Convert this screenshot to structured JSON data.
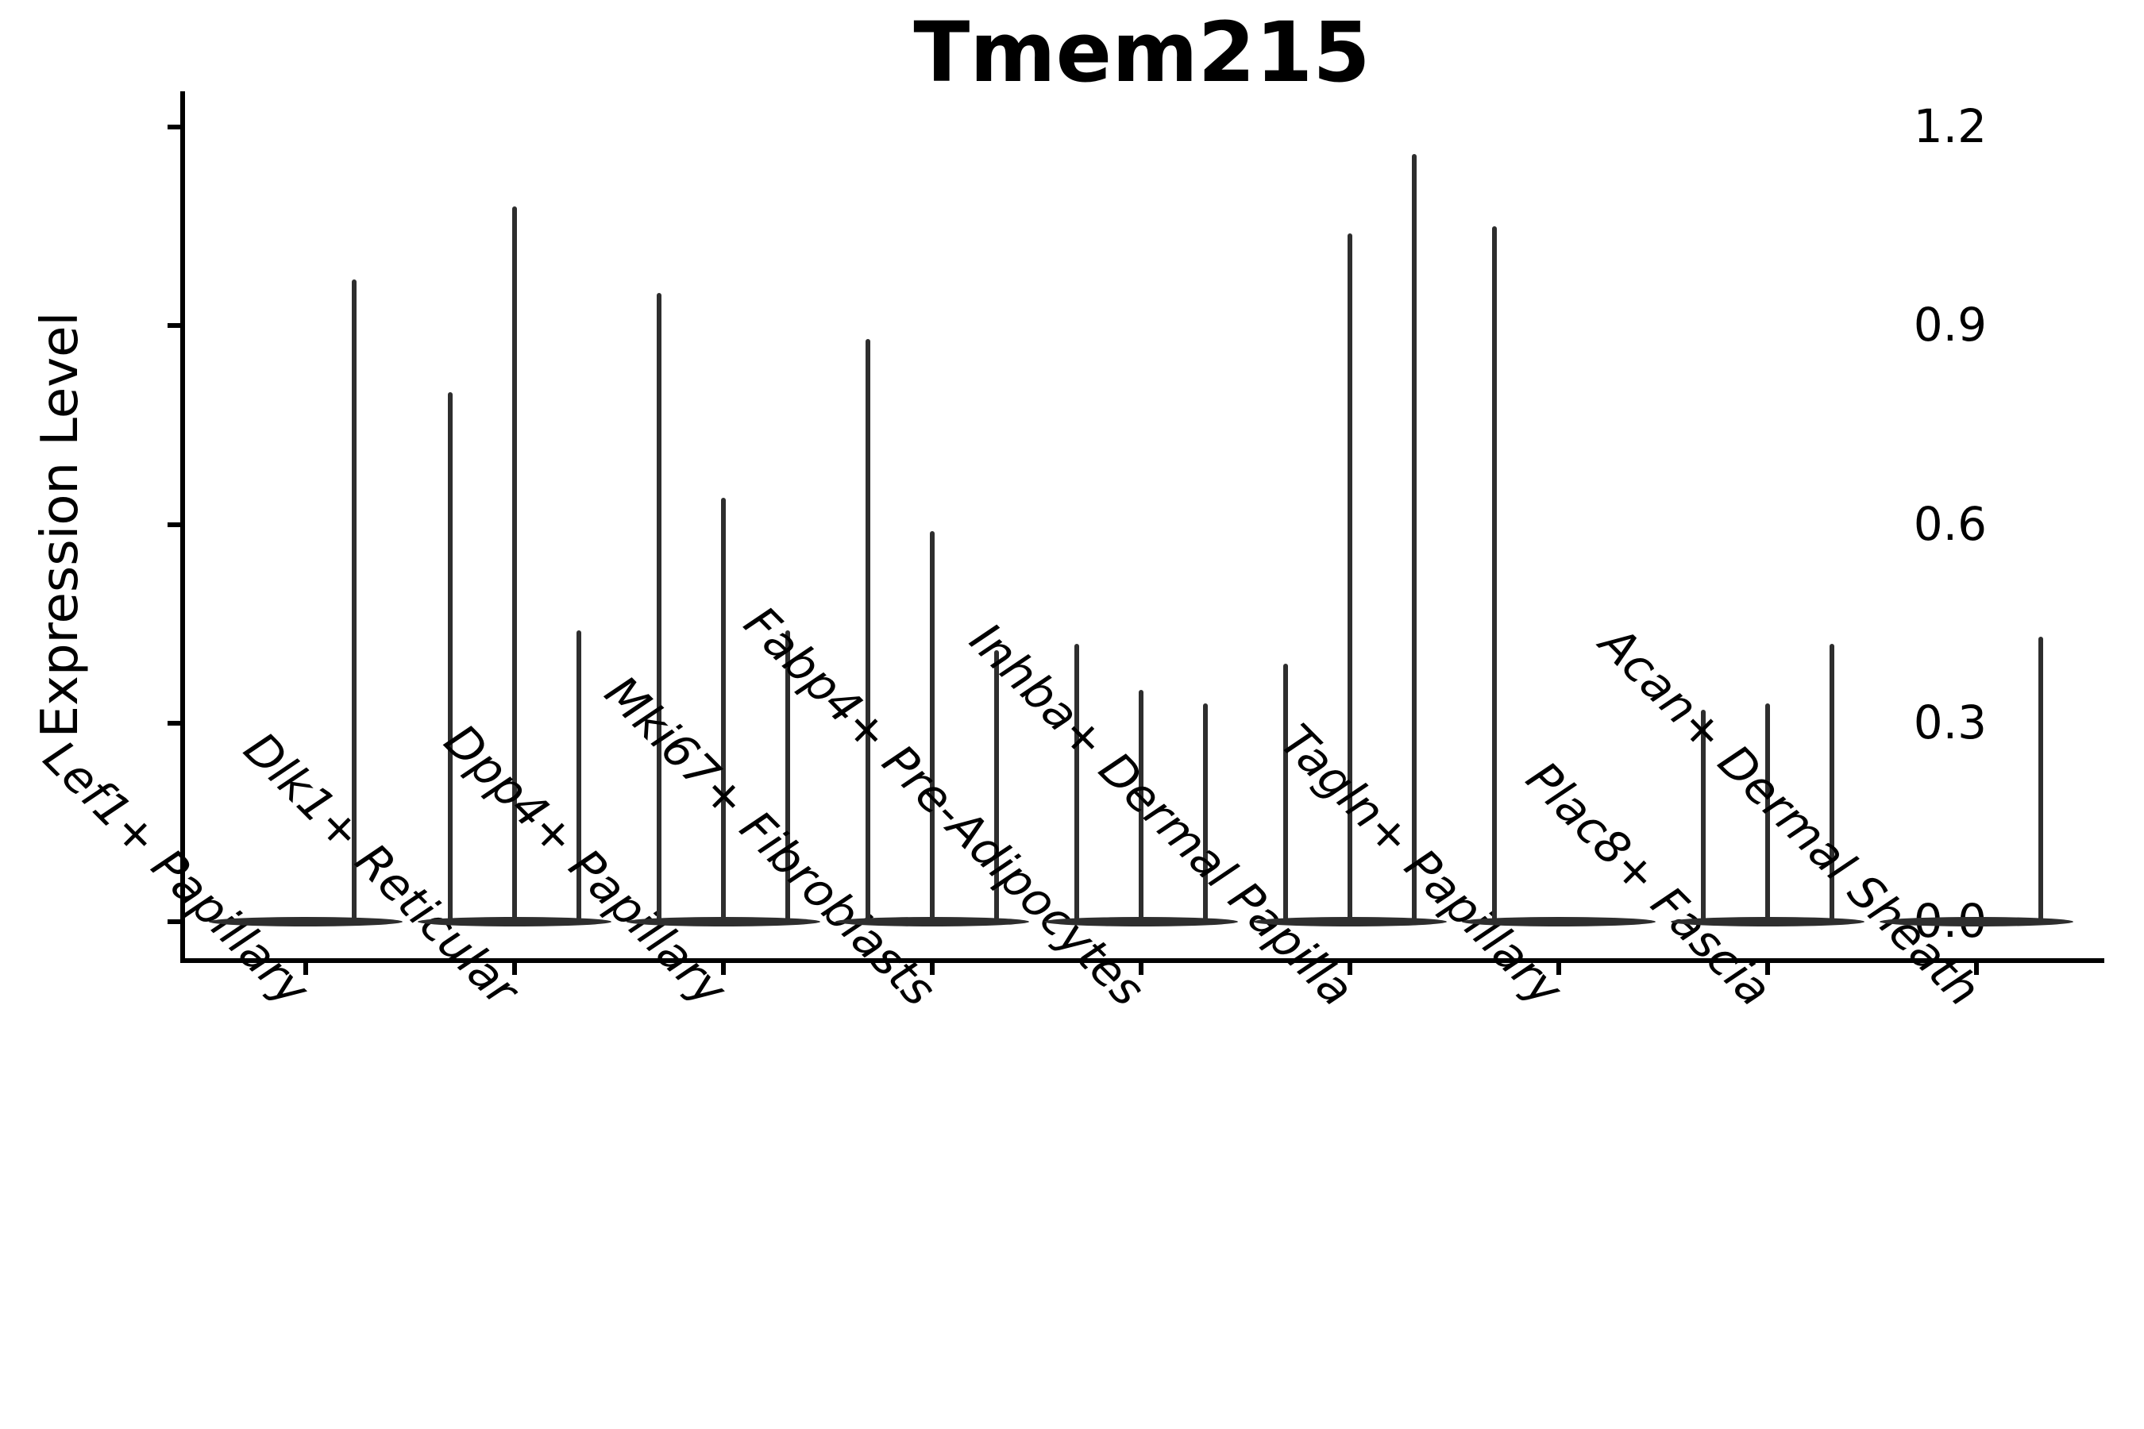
{
  "figure": {
    "title": "Tmem215",
    "y_axis_label": "Expression Level"
  },
  "chart_data": {
    "type": "violin",
    "title": "Tmem215",
    "xlabel": "",
    "ylabel": "Expression Level",
    "ylim": [
      -0.06,
      1.22
    ],
    "yticks": [
      0.0,
      0.3,
      0.6,
      0.9,
      1.2
    ],
    "ytick_labels": [
      "0.0",
      "0.3",
      "0.6",
      "0.9",
      "1.2"
    ],
    "grid": false,
    "legend": "none",
    "description": "Violin plot of Tmem215 expression; each category holds thin sub-violins flattened at 0 with narrow spikes up to the maximum expression value.",
    "categories": [
      "Lef1+ Papillary",
      "Dlk1+ Reticular",
      "Dpp4+ Papillary",
      "Mki67+ Fibroblasts",
      "Fabp4+ Pre-Adipocytes",
      "Inhba+ Dermal Papilla",
      "Tagln+ Papillary",
      "Plac8+ Fascia",
      "Acan+ Dermal Sheath"
    ],
    "groups": [
      {
        "category": "Lef1+ Papillary",
        "n_violins": 2,
        "spikes": [
          {
            "violin": 1,
            "value": 0.97
          }
        ]
      },
      {
        "category": "Dlk1+ Reticular",
        "n_violins": 3,
        "spikes": [
          {
            "violin": 0,
            "value": 0.8
          },
          {
            "violin": 1,
            "value": 1.08
          },
          {
            "violin": 2,
            "value": 0.44
          }
        ]
      },
      {
        "category": "Dpp4+ Papillary",
        "n_violins": 3,
        "spikes": [
          {
            "violin": 0,
            "value": 0.95
          },
          {
            "violin": 1,
            "value": 0.64
          },
          {
            "violin": 2,
            "value": 0.44
          }
        ]
      },
      {
        "category": "Mki67+ Fibroblasts",
        "n_violins": 3,
        "spikes": [
          {
            "violin": 0,
            "value": 0.88
          },
          {
            "violin": 1,
            "value": 0.59
          },
          {
            "violin": 2,
            "value": 0.41
          }
        ]
      },
      {
        "category": "Fabp4+ Pre-Adipocytes",
        "n_violins": 3,
        "spikes": [
          {
            "violin": 0,
            "value": 0.42
          },
          {
            "violin": 1,
            "value": 0.35
          },
          {
            "violin": 2,
            "value": 0.33
          }
        ]
      },
      {
        "category": "Inhba+ Dermal Papilla",
        "n_violins": 3,
        "spikes": [
          {
            "violin": 0,
            "value": 0.39
          },
          {
            "violin": 1,
            "value": 1.04
          },
          {
            "violin": 2,
            "value": 1.16
          }
        ]
      },
      {
        "category": "Tagln+ Papillary",
        "n_violins": 3,
        "spikes": [
          {
            "violin": 0,
            "value": 1.05
          }
        ]
      },
      {
        "category": "Plac8+ Fascia",
        "n_violins": 3,
        "spikes": [
          {
            "violin": 0,
            "value": 0.32
          },
          {
            "violin": 1,
            "value": 0.33
          },
          {
            "violin": 2,
            "value": 0.42
          }
        ]
      },
      {
        "category": "Acan+ Dermal Sheath",
        "n_violins": 3,
        "spikes": [
          {
            "violin": 2,
            "value": 0.43
          }
        ]
      }
    ],
    "colors": {
      "violin_fill": "#2e2e2e",
      "axis": "#000000",
      "text": "#000000",
      "background": "#ffffff"
    }
  }
}
